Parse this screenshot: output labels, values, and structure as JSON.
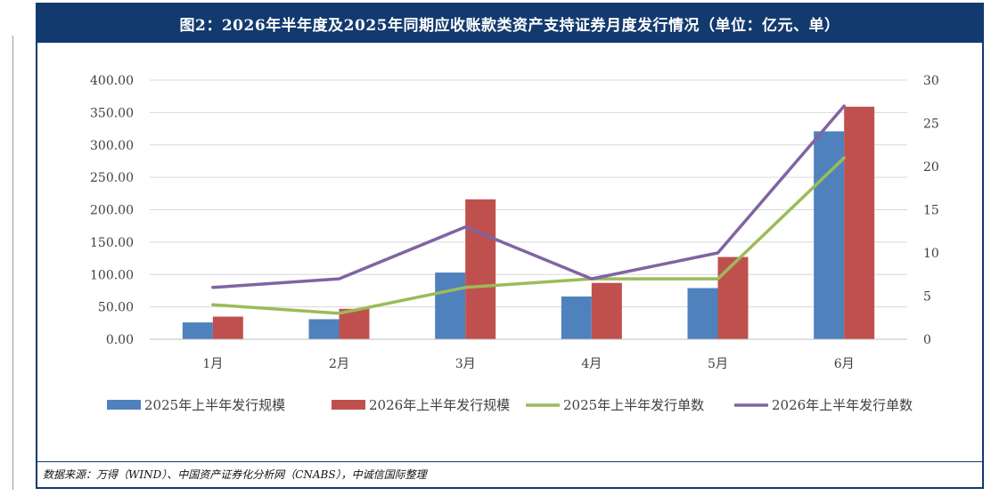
{
  "title": "图2：2026年半年度及2025年同期应收账款类资产支持证券月度发行情况（单位：亿元、单）",
  "source": "数据来源：万得（WIND）、中国资产证券化分析网（CNABS），中诚信国际整理",
  "chart_data": {
    "type": "bar",
    "categories": [
      "1月",
      "2月",
      "3月",
      "4月",
      "5月",
      "6月"
    ],
    "series": [
      {
        "name": "2025年上半年发行规模",
        "type": "bar",
        "axis": "left",
        "color": "#4f81bd",
        "values": [
          26,
          31,
          103,
          66,
          79,
          321
        ]
      },
      {
        "name": "2026年上半年发行规模",
        "type": "bar",
        "axis": "left",
        "color": "#c0504d",
        "values": [
          35,
          47,
          216,
          87,
          127,
          359
        ]
      },
      {
        "name": "2025年上半年发行单数",
        "type": "line",
        "axis": "right",
        "color": "#9bbb59",
        "values": [
          4,
          3,
          6,
          7,
          7,
          21
        ]
      },
      {
        "name": "2026年上半年发行单数",
        "type": "line",
        "axis": "right",
        "color": "#8064a2",
        "values": [
          6,
          7,
          13,
          7,
          10,
          27
        ]
      }
    ],
    "y_left": {
      "min": 0,
      "max": 400,
      "ticks": [
        "0.00",
        "50.00",
        "100.00",
        "150.00",
        "200.00",
        "250.00",
        "300.00",
        "350.00",
        "400.00"
      ]
    },
    "y_right": {
      "min": 0,
      "max": 30,
      "ticks": [
        "0",
        "5",
        "10",
        "15",
        "20",
        "25",
        "30"
      ]
    },
    "gridlines": true,
    "legend_position": "bottom"
  }
}
